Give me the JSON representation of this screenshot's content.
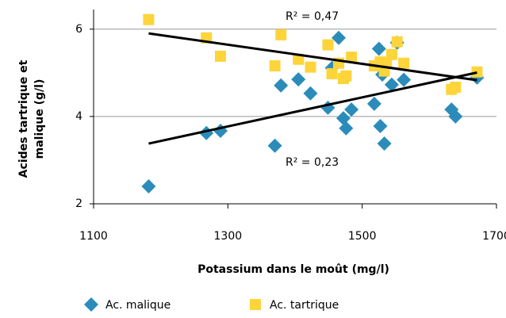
{
  "chart_data": {
    "type": "scatter",
    "x_label": "Potassium dans le moût (mg/l)",
    "y_label": [
      "Acides tartrique et",
      "malique (g/l)"
    ],
    "annotations": [
      "R² = 0,47",
      "R² = 0,23"
    ],
    "xlim": [
      1100,
      1700
    ],
    "xticks": [
      1100,
      1300,
      1500,
      1700
    ],
    "ylim": [
      2,
      6.45
    ],
    "yticks": [
      2,
      4,
      6
    ],
    "grid": true,
    "legend": "bottom",
    "series": [
      {
        "name": "Ac. malique",
        "color": "#2b8cba",
        "marker": "diamond",
        "x": [
          1182,
          1268,
          1289,
          1370,
          1379,
          1405,
          1423,
          1449,
          1465,
          1455,
          1472,
          1476,
          1484,
          1518,
          1525,
          1527,
          1530,
          1533,
          1544,
          1552,
          1562,
          1633,
          1639,
          1671
        ],
        "values": [
          2.4,
          3.62,
          3.67,
          3.33,
          4.71,
          4.85,
          4.53,
          4.2,
          5.8,
          5.11,
          3.96,
          3.73,
          4.16,
          4.29,
          5.55,
          3.78,
          4.96,
          3.38,
          4.73,
          5.69,
          4.84,
          4.16,
          4.0,
          4.89
        ]
      },
      {
        "name": "Ac. tartrique",
        "color": "#fdd43a",
        "marker": "square",
        "x": [
          1182,
          1268,
          1289,
          1370,
          1379,
          1405,
          1423,
          1449,
          1465,
          1455,
          1472,
          1476,
          1484,
          1518,
          1527,
          1533,
          1536,
          1544,
          1552,
          1562,
          1633,
          1639,
          1671
        ],
        "values": [
          6.22,
          5.8,
          5.38,
          5.16,
          5.87,
          5.31,
          5.13,
          5.64,
          5.22,
          4.98,
          4.87,
          4.93,
          5.36,
          5.16,
          5.25,
          5.04,
          5.22,
          5.42,
          5.71,
          5.22,
          4.62,
          4.67,
          5.02
        ]
      }
    ]
  }
}
